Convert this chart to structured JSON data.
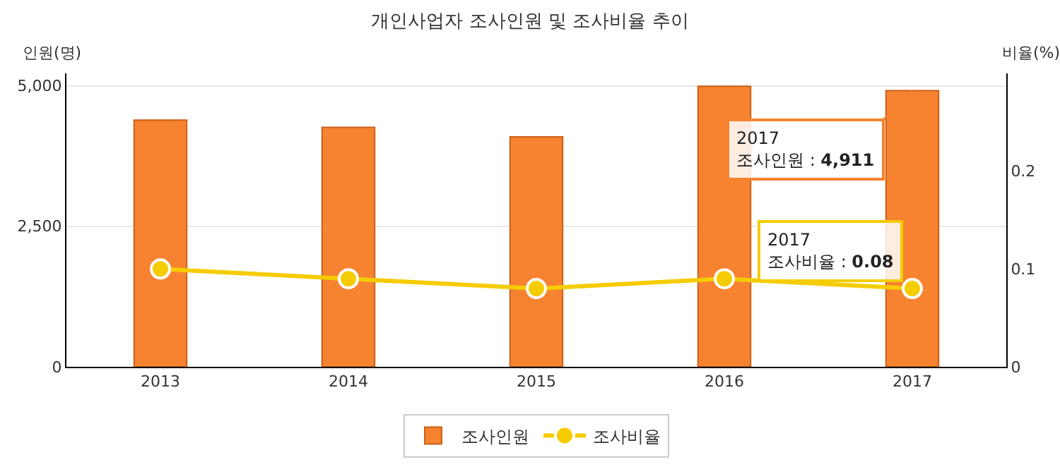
{
  "chart_data": {
    "type": "bar",
    "title": "개인사업자 조사인원 및 조사비율 추이",
    "ylabel": "인원(명)",
    "y2label": "비율(%)",
    "categories": [
      "2013",
      "2014",
      "2015",
      "2016",
      "2017"
    ],
    "series": [
      {
        "name": "조사인원",
        "color": "#f7822f",
        "values": [
          4390,
          4260,
          4090,
          4990,
          4911
        ]
      },
      {
        "name": "조사비율",
        "type": "line",
        "axis": "y2",
        "color": "#f5cc00",
        "marker": "circle",
        "values": [
          0.1,
          0.09,
          0.08,
          0.09,
          0.08
        ]
      }
    ],
    "ylim": [
      0,
      5220
    ],
    "yticks": [
      {
        "value": 0,
        "label": "0"
      },
      {
        "value": 2500,
        "label": "2,500"
      },
      {
        "value": 5000,
        "label": "5,000"
      }
    ],
    "y2lim": [
      0,
      0.3
    ],
    "y2ticks": [
      0,
      0.1,
      0.2
    ],
    "annotations": [
      {
        "text": "2017\n조사인원 : 4,911",
        "x": "2017",
        "y": 4911
      },
      "2017\n조사비율 : 0.08"
    ],
    "grid": "y",
    "legend": "bottom"
  }
}
